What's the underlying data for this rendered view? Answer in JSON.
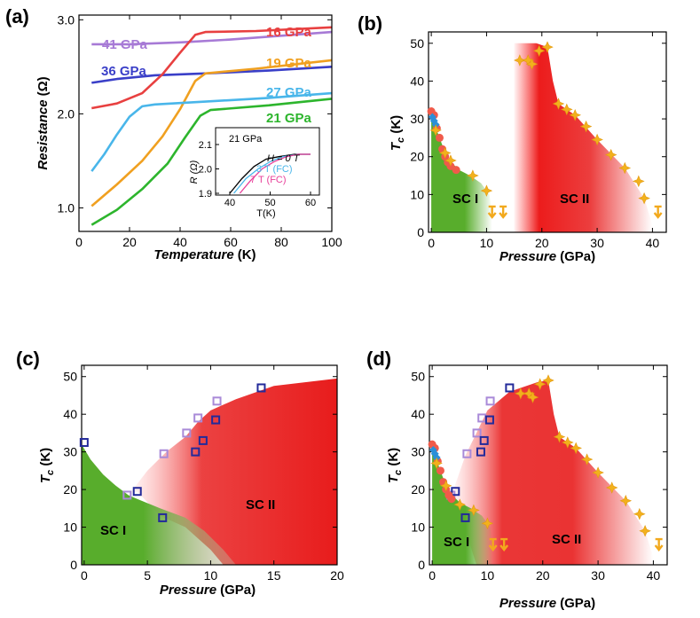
{
  "figure": {
    "panels": [
      "(a)",
      "(b)",
      "(c)",
      "(d)"
    ]
  },
  "chart_data": [
    {
      "panel": "(a)",
      "type": "line",
      "xlabel": "Temperature",
      "xunit": "(K)",
      "ylabel": "Resistance",
      "yunit": "(Ω)",
      "xlim": [
        0,
        100
      ],
      "ylim": [
        0.75,
        3.05
      ],
      "xticks": [
        "0",
        "20",
        "40",
        "60",
        "80",
        "100"
      ],
      "yticks": [
        "1.0",
        "2.0",
        "3.0"
      ],
      "series": [
        {
          "name": "41 GPa",
          "color": "#a77ad6",
          "x": [
            5,
            20,
            40,
            60,
            80,
            100
          ],
          "y": [
            2.74,
            2.74,
            2.76,
            2.79,
            2.83,
            2.87
          ]
        },
        {
          "name": "36 GPa",
          "color": "#3a3fc8",
          "x": [
            5,
            15,
            30,
            50,
            75,
            100
          ],
          "y": [
            2.33,
            2.37,
            2.41,
            2.43,
            2.46,
            2.5
          ]
        },
        {
          "name": "16 GPa",
          "color": "#e84040",
          "x": [
            5,
            15,
            25,
            33,
            40,
            46,
            50,
            70,
            100
          ],
          "y": [
            2.06,
            2.11,
            2.22,
            2.42,
            2.65,
            2.84,
            2.87,
            2.88,
            2.92
          ]
        },
        {
          "name": "19 GPa",
          "color": "#f0a020",
          "x": [
            5,
            15,
            25,
            33,
            40,
            46,
            50,
            70,
            100
          ],
          "y": [
            1.02,
            1.25,
            1.5,
            1.76,
            2.05,
            2.35,
            2.43,
            2.48,
            2.57
          ]
        },
        {
          "name": "27 GPa",
          "color": "#49b6ea",
          "x": [
            5,
            10,
            15,
            20,
            25,
            30,
            50,
            75,
            100
          ],
          "y": [
            1.39,
            1.57,
            1.78,
            1.97,
            2.08,
            2.1,
            2.13,
            2.17,
            2.22
          ]
        },
        {
          "name": "21 GPa",
          "color": "#2db52d",
          "x": [
            5,
            15,
            25,
            35,
            42,
            48,
            52,
            75,
            100
          ],
          "y": [
            0.82,
            0.98,
            1.2,
            1.47,
            1.75,
            1.98,
            2.04,
            2.09,
            2.16
          ]
        }
      ],
      "inset": {
        "title": "21 GPa",
        "xlabel": "T(K)",
        "ylabel": "R (Ω)",
        "xlim": [
          40,
          60
        ],
        "ylim": [
          1.9,
          2.1
        ],
        "xticks": [
          "40",
          "50",
          "60"
        ],
        "yticks": [
          "1.9",
          "2.0",
          "2.1"
        ],
        "series": [
          {
            "name": "H = 0 T",
            "color": "#000000",
            "x": [
              40,
              43,
              46,
              49,
              52,
              56,
              60
            ],
            "y": [
              1.9,
              1.96,
              2.01,
              2.04,
              2.05,
              2.06,
              2.06
            ]
          },
          {
            "name": "3 T (FC)",
            "color": "#49b6ea",
            "x": [
              41,
              44,
              47,
              50,
              53,
              57,
              60
            ],
            "y": [
              1.9,
              1.96,
              2.0,
              2.03,
              2.05,
              2.06,
              2.06
            ]
          },
          {
            "name": "7 T (FC)",
            "color": "#e8409a",
            "x": [
              42.5,
              45,
              48,
              51,
              54,
              57,
              60
            ],
            "y": [
              1.9,
              1.95,
              2.0,
              2.03,
              2.05,
              2.06,
              2.06
            ]
          }
        ]
      }
    },
    {
      "panel": "(b)",
      "type": "scatter",
      "xlabel": "Pressure",
      "xunit": "(GPa)",
      "ylabel": "T",
      "ysub": "c",
      "yunit": " (K)",
      "xlim": [
        -0.5,
        42.5
      ],
      "ylim": [
        0,
        53
      ],
      "xticks": [
        "0",
        "10",
        "20",
        "30",
        "40"
      ],
      "yticks": [
        "0",
        "10",
        "20",
        "30",
        "40",
        "50"
      ],
      "regions": [
        "SC I",
        "SC II"
      ],
      "red_circles": [
        [
          0,
          32
        ],
        [
          0.5,
          31
        ],
        [
          1.0,
          27.5
        ],
        [
          1.5,
          25
        ],
        [
          2.0,
          22
        ],
        [
          2.5,
          20
        ],
        [
          3.0,
          18.5
        ],
        [
          3.5,
          17.5
        ],
        [
          4.5,
          16.5
        ]
      ],
      "blue_diamonds": [
        [
          0.2,
          30.5
        ],
        [
          0.5,
          29.5
        ],
        [
          0.8,
          28.5
        ]
      ],
      "stars": [
        [
          0.8,
          27
        ],
        [
          2.5,
          21
        ],
        [
          3.5,
          19
        ],
        [
          7.5,
          15
        ],
        [
          10,
          11
        ],
        [
          16,
          45.5
        ],
        [
          17.5,
          45.5
        ],
        [
          18.2,
          44.5
        ],
        [
          19.5,
          48
        ],
        [
          21,
          49
        ],
        [
          23,
          34
        ],
        [
          24.5,
          32.5
        ],
        [
          26,
          31
        ],
        [
          28,
          28
        ],
        [
          30,
          24.5
        ],
        [
          32.5,
          20.5
        ],
        [
          35,
          17
        ],
        [
          37.5,
          13.5
        ],
        [
          38.5,
          9
        ]
      ],
      "arrows_down": [
        [
          11,
          4
        ],
        [
          13,
          4
        ],
        [
          41,
          4
        ]
      ]
    },
    {
      "panel": "(c)",
      "type": "scatter",
      "xlabel": "Pressure",
      "xunit": "(GPa)",
      "ylabel": "T",
      "ysub": "c",
      "yunit": " (K)",
      "xlim": [
        -0.2,
        20
      ],
      "ylim": [
        0,
        53
      ],
      "xticks": [
        "0",
        "5",
        "10",
        "15",
        "20"
      ],
      "yticks": [
        "0",
        "10",
        "20",
        "30",
        "40",
        "50"
      ],
      "regions": [
        "SC I",
        "SC II"
      ],
      "open_squares_dark": [
        [
          0,
          32.5
        ],
        [
          4.2,
          19.5
        ],
        [
          6.2,
          12.5
        ],
        [
          8.8,
          30
        ],
        [
          9.4,
          33
        ],
        [
          10.4,
          38.5
        ],
        [
          14,
          47
        ]
      ],
      "open_squares_light": [
        [
          3.4,
          18.5
        ],
        [
          6.3,
          29.5
        ],
        [
          8.1,
          35
        ],
        [
          9.0,
          39
        ],
        [
          10.5,
          43.5
        ]
      ]
    },
    {
      "panel": "(d)",
      "type": "scatter",
      "xlabel": "Pressure",
      "xunit": "(GPa)",
      "ylabel": "T",
      "ysub": "c",
      "yunit": " (K)",
      "xlim": [
        -0.5,
        42.5
      ],
      "ylim": [
        0,
        53
      ],
      "xticks": [
        "0",
        "10",
        "20",
        "30",
        "40"
      ],
      "yticks": [
        "0",
        "10",
        "20",
        "30",
        "40",
        "50"
      ],
      "regions": [
        "SC I",
        "SC II"
      ],
      "red_circles": [
        [
          0,
          32
        ],
        [
          0.5,
          31
        ],
        [
          1.0,
          27.5
        ],
        [
          1.5,
          25
        ],
        [
          2.0,
          22
        ],
        [
          2.5,
          20
        ],
        [
          3.0,
          18.5
        ],
        [
          3.5,
          17.5
        ]
      ],
      "blue_diamonds": [
        [
          0.2,
          30.5
        ],
        [
          0.5,
          29.5
        ],
        [
          0.8,
          28.5
        ]
      ],
      "stars": [
        [
          0.8,
          27
        ],
        [
          2.5,
          21
        ],
        [
          5,
          16
        ],
        [
          7.5,
          14.5
        ],
        [
          10,
          11
        ],
        [
          16,
          45.5
        ],
        [
          17.5,
          45.5
        ],
        [
          18.2,
          44.5
        ],
        [
          19.5,
          48
        ],
        [
          21,
          49
        ],
        [
          23,
          34
        ],
        [
          24.5,
          32.5
        ],
        [
          26,
          31
        ],
        [
          28,
          28
        ],
        [
          30,
          24.5
        ],
        [
          32.5,
          20.5
        ],
        [
          35,
          17
        ],
        [
          37.5,
          13.5
        ],
        [
          38.5,
          9
        ]
      ],
      "open_squares_dark": [
        [
          4.2,
          19.5
        ],
        [
          6.0,
          12.5
        ],
        [
          8.8,
          30
        ],
        [
          9.4,
          33
        ],
        [
          10.4,
          38.5
        ],
        [
          14,
          47
        ]
      ],
      "open_squares_light": [
        [
          3.4,
          18.5
        ],
        [
          6.3,
          29.5
        ],
        [
          8.1,
          35
        ],
        [
          9.0,
          39
        ],
        [
          10.5,
          43.5
        ]
      ],
      "arrows_down": [
        [
          11,
          4
        ],
        [
          13,
          4
        ],
        [
          41,
          4
        ]
      ]
    }
  ]
}
